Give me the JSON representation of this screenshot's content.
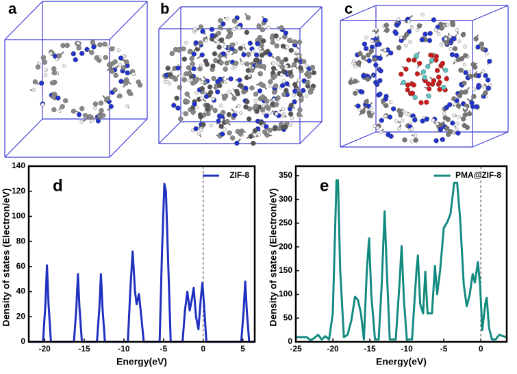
{
  "panels": {
    "labels": [
      "a",
      "b",
      "c"
    ]
  },
  "chart_data": [
    {
      "type": "line",
      "panel_label": "d",
      "xlabel": "Energy(eV)",
      "ylabel": "Density of states (Electron/eV)",
      "xlim": [
        -22,
        6.5
      ],
      "xticks": [
        -20,
        -15,
        -10,
        -5,
        0,
        5
      ],
      "ylim": [
        0,
        140
      ],
      "yticks": [
        0,
        20,
        40,
        60,
        80,
        100,
        120,
        140
      ],
      "vline": 0,
      "legend": "upper right",
      "x": [
        -22,
        -20.2,
        -19.9,
        -19.7,
        -19.5,
        -19.2,
        -16.3,
        -16,
        -15.8,
        -15.6,
        -15.3,
        -13.4,
        -13.1,
        -12.9,
        -12.7,
        -12.4,
        -9.5,
        -9.2,
        -8.9,
        -8.6,
        -8.4,
        -8.1,
        -7.8,
        -7.5,
        -5.5,
        -5.2,
        -4.9,
        -4.7,
        -4.4,
        -4.1,
        -2.6,
        -2.3,
        -2,
        -1.7,
        -1.4,
        -1.2,
        -0.9,
        -0.6,
        -0.3,
        -0.1,
        0.1,
        0.4,
        4.8,
        5.1,
        5.3,
        5.5,
        5.8,
        6.5
      ],
      "series": [
        {
          "name": "ZIF-8",
          "color": "#1f2fbf",
          "values": [
            0,
            0,
            30,
            61,
            30,
            0,
            0,
            27,
            54,
            27,
            0,
            0,
            27,
            54,
            27,
            0,
            0,
            40,
            72,
            40,
            30,
            38,
            20,
            0,
            0,
            70,
            126,
            120,
            60,
            0,
            0,
            25,
            40,
            25,
            35,
            43,
            20,
            10,
            35,
            47,
            30,
            0,
            0,
            25,
            48,
            25,
            0,
            0
          ]
        }
      ]
    },
    {
      "type": "line",
      "panel_label": "e",
      "xlabel": "Energy(eV)",
      "ylabel": "Density of states (Electron/eV)",
      "xlim": [
        -25,
        3.5
      ],
      "xticks": [
        -25,
        -20,
        -15,
        -10,
        -5,
        0
      ],
      "ylim": [
        0,
        370
      ],
      "yticks": [
        0,
        50,
        100,
        150,
        200,
        250,
        300,
        350
      ],
      "vline": 0,
      "legend": "upper right",
      "x": [
        -25,
        -23.5,
        -23,
        -22.5,
        -22,
        -21.5,
        -21,
        -20.5,
        -20,
        -19.5,
        -19.3,
        -19,
        -18.5,
        -18,
        -17.5,
        -17,
        -16.6,
        -16.2,
        -15.8,
        -15.4,
        -15.1,
        -14.8,
        -14.3,
        -13.8,
        -13.4,
        -13,
        -12.7,
        -12.3,
        -11.5,
        -11,
        -10.7,
        -10.4,
        -10,
        -9.3,
        -8.7,
        -8.5,
        -8.2,
        -7.8,
        -7.5,
        -7.2,
        -6.6,
        -6.2,
        -5.9,
        -5.5,
        -5,
        -4.5,
        -4.1,
        -3.6,
        -3.2,
        -2.8,
        -2.3,
        -1.9,
        -1.5,
        -1.1,
        -0.8,
        -0.4,
        -0.1,
        0.2,
        0.6,
        0.8,
        1.1,
        1.5,
        2,
        2.5,
        3,
        3.5
      ],
      "series": [
        {
          "name": "PMA@ZIF-8",
          "color": "#138a80",
          "values": [
            10,
            10,
            3,
            8,
            15,
            5,
            12,
            5,
            60,
            340,
            340,
            150,
            10,
            15,
            45,
            95,
            88,
            60,
            5,
            150,
            218,
            100,
            5,
            5,
            120,
            275,
            150,
            5,
            5,
            120,
            202,
            90,
            5,
            5,
            150,
            182,
            80,
            60,
            148,
            60,
            60,
            160,
            100,
            150,
            240,
            253,
            270,
            335,
            335,
            260,
            120,
            75,
            100,
            143,
            125,
            168,
            120,
            25,
            80,
            93,
            30,
            5,
            5,
            15,
            12,
            10
          ]
        }
      ]
    }
  ]
}
